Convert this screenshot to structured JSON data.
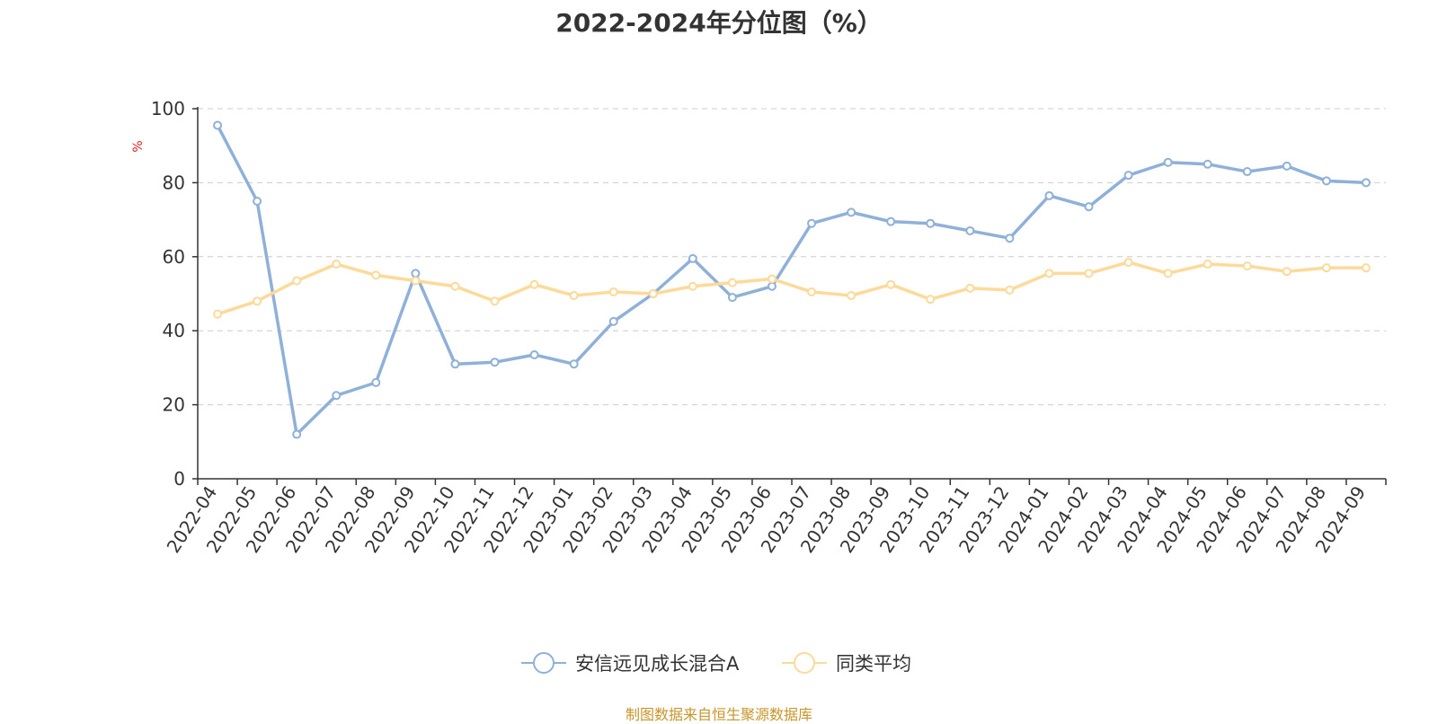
{
  "title": "2022-2024年分位图（%）",
  "source": "制图数据来自恒生聚源数据库",
  "colors": {
    "fund": "#8eb0d9",
    "average": "#fdd99a",
    "axis": "#333333",
    "grid": "#cccccc",
    "unit": "#e02020",
    "source": "#c8952a"
  },
  "chart_data": {
    "type": "line",
    "ylabel": "%",
    "ylim": [
      0,
      100
    ],
    "yticks": [
      0,
      20,
      40,
      60,
      80,
      100
    ],
    "grid": true,
    "legend_position": "bottom-center",
    "categories": [
      "2022-04",
      "2022-05",
      "2022-06",
      "2022-07",
      "2022-08",
      "2022-09",
      "2022-10",
      "2022-11",
      "2022-12",
      "2023-01",
      "2023-02",
      "2023-03",
      "2023-04",
      "2023-05",
      "2023-06",
      "2023-07",
      "2023-08",
      "2023-09",
      "2023-10",
      "2023-11",
      "2023-12",
      "2024-01",
      "2024-02",
      "2024-03",
      "2024-04",
      "2024-05",
      "2024-06",
      "2024-07",
      "2024-08",
      "2024-09"
    ],
    "series": [
      {
        "name": "安信远见成长混合A",
        "color": "#8eb0d9",
        "values": [
          95.5,
          75,
          12,
          22.5,
          26,
          55.5,
          31,
          31.5,
          33.5,
          31,
          42.5,
          50,
          59.5,
          49,
          52,
          69,
          72,
          69.5,
          69,
          67,
          65,
          76.5,
          73.5,
          82,
          85.5,
          85,
          83,
          84.5,
          80.5,
          80
        ]
      },
      {
        "name": "同类平均",
        "color": "#fdd99a",
        "values": [
          44.5,
          48,
          53.5,
          58,
          55,
          53.5,
          52,
          48,
          52.5,
          49.5,
          50.5,
          50,
          52,
          53,
          54,
          50.5,
          49.5,
          52.5,
          48.5,
          51.5,
          51,
          55.5,
          55.5,
          58.5,
          55.5,
          58,
          57.5,
          56,
          57,
          57
        ]
      }
    ]
  }
}
